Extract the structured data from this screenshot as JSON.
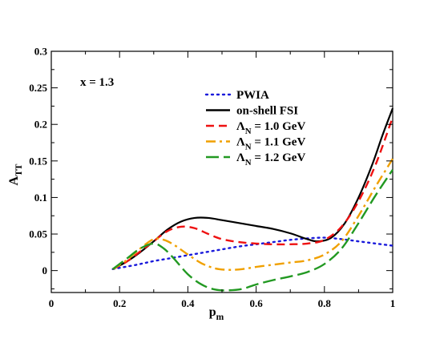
{
  "chart_data": {
    "type": "line",
    "xlabel": "p",
    "xlabel_sub": "m",
    "ylabel": "A",
    "ylabel_sub": "TT",
    "xlim": [
      0,
      1
    ],
    "ylim": [
      -0.03,
      0.3
    ],
    "xticks": [
      0,
      0.2,
      0.4,
      0.6,
      0.8,
      1
    ],
    "xtick_labels": [
      "0",
      "0.2",
      "0.4",
      "0.6",
      "0.8",
      "1"
    ],
    "yticks": [
      0,
      0.05,
      0.1,
      0.15,
      0.2,
      0.25,
      0.3
    ],
    "ytick_labels": [
      "0",
      "0.05",
      "0.1",
      "0.15",
      "0.2",
      "0.25",
      "0.3"
    ],
    "grid": false,
    "legend_position": "top-right",
    "annotation": "x = 1.3",
    "series": [
      {
        "name": "PWIA",
        "name_sub": "",
        "color": "#1a1adb",
        "dash": "dotted",
        "x": [
          0.18,
          0.25,
          0.3,
          0.35,
          0.4,
          0.45,
          0.5,
          0.55,
          0.6,
          0.65,
          0.7,
          0.75,
          0.8,
          0.85,
          0.9,
          0.95,
          1.0
        ],
        "y": [
          0.002,
          0.008,
          0.013,
          0.017,
          0.021,
          0.025,
          0.029,
          0.033,
          0.036,
          0.039,
          0.042,
          0.044,
          0.045,
          0.043,
          0.04,
          0.037,
          0.034
        ]
      },
      {
        "name": "on-shell FSI",
        "name_sub": "",
        "color": "#000000",
        "dash": "solid",
        "x": [
          0.18,
          0.22,
          0.26,
          0.3,
          0.34,
          0.38,
          0.42,
          0.46,
          0.5,
          0.55,
          0.6,
          0.65,
          0.7,
          0.75,
          0.78,
          0.82,
          0.86,
          0.9,
          0.94,
          0.97,
          1.0
        ],
        "y": [
          0.002,
          0.012,
          0.025,
          0.04,
          0.056,
          0.067,
          0.072,
          0.072,
          0.069,
          0.065,
          0.061,
          0.057,
          0.051,
          0.043,
          0.04,
          0.045,
          0.065,
          0.1,
          0.145,
          0.185,
          0.222
        ]
      },
      {
        "name": "Λ",
        "name_sub": "N",
        "name_suffix": " = 1.0 GeV",
        "color": "#ee1111",
        "dash": "dashed",
        "x": [
          0.18,
          0.22,
          0.26,
          0.3,
          0.34,
          0.38,
          0.42,
          0.46,
          0.5,
          0.55,
          0.6,
          0.65,
          0.7,
          0.75,
          0.8,
          0.85,
          0.9,
          0.95,
          1.0
        ],
        "y": [
          0.002,
          0.012,
          0.026,
          0.04,
          0.054,
          0.06,
          0.058,
          0.05,
          0.043,
          0.039,
          0.037,
          0.036,
          0.036,
          0.037,
          0.042,
          0.06,
          0.095,
          0.145,
          0.21
        ]
      },
      {
        "name": "Λ",
        "name_sub": "N",
        "name_suffix": " = 1.1 GeV",
        "color": "#f0a000",
        "dash": "dashdot",
        "x": [
          0.18,
          0.22,
          0.26,
          0.3,
          0.33,
          0.36,
          0.4,
          0.44,
          0.48,
          0.52,
          0.56,
          0.6,
          0.65,
          0.7,
          0.75,
          0.8,
          0.85,
          0.9,
          0.95,
          1.0
        ],
        "y": [
          0.002,
          0.014,
          0.03,
          0.043,
          0.042,
          0.035,
          0.022,
          0.01,
          0.003,
          0.001,
          0.002,
          0.005,
          0.008,
          0.011,
          0.014,
          0.022,
          0.04,
          0.075,
          0.115,
          0.153
        ]
      },
      {
        "name": "Λ",
        "name_sub": "N",
        "name_suffix": " = 1.2 GeV",
        "color": "#229922",
        "dash": "longdash",
        "x": [
          0.18,
          0.22,
          0.26,
          0.3,
          0.33,
          0.36,
          0.4,
          0.44,
          0.48,
          0.52,
          0.56,
          0.6,
          0.65,
          0.7,
          0.75,
          0.8,
          0.85,
          0.9,
          0.95,
          1.0
        ],
        "y": [
          0.002,
          0.016,
          0.03,
          0.037,
          0.03,
          0.016,
          -0.005,
          -0.019,
          -0.026,
          -0.027,
          -0.025,
          -0.019,
          -0.013,
          -0.008,
          -0.002,
          0.009,
          0.03,
          0.065,
          0.103,
          0.138
        ]
      }
    ]
  }
}
